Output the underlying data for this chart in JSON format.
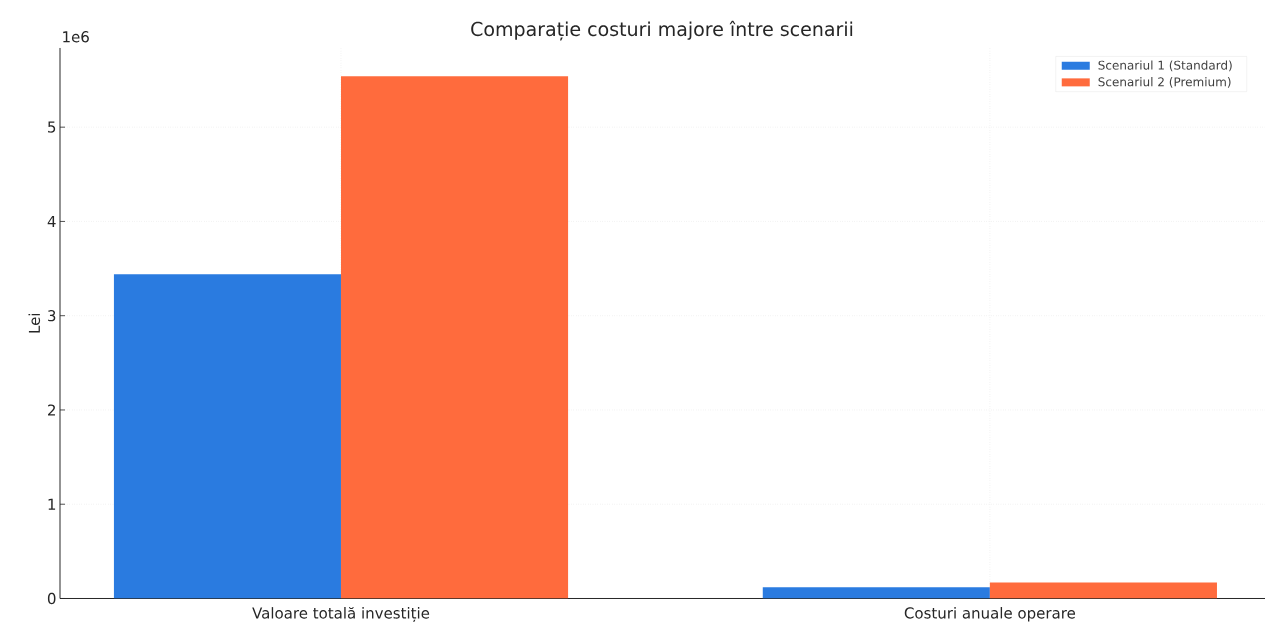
{
  "chart_data": {
    "type": "bar",
    "title": "Comparație costuri majore între scenarii",
    "ylabel": "Lei",
    "categories": [
      "Valoare totală investiție",
      "Costuri anuale operare"
    ],
    "series": [
      {
        "name": "Scenariul 1 (Standard)",
        "color": "#2a7be0",
        "values": [
          3.44,
          0.12
        ]
      },
      {
        "name": "Scenariul 2 (Premium)",
        "color": "#ff6b3d",
        "values": [
          5.54,
          0.17
        ]
      }
    ],
    "ylim": [
      0,
      5.84
    ],
    "yticks": [
      0,
      1,
      2,
      3,
      4,
      5
    ],
    "annotations": [
      "1e6"
    ],
    "grid": true,
    "legend": "top right"
  }
}
